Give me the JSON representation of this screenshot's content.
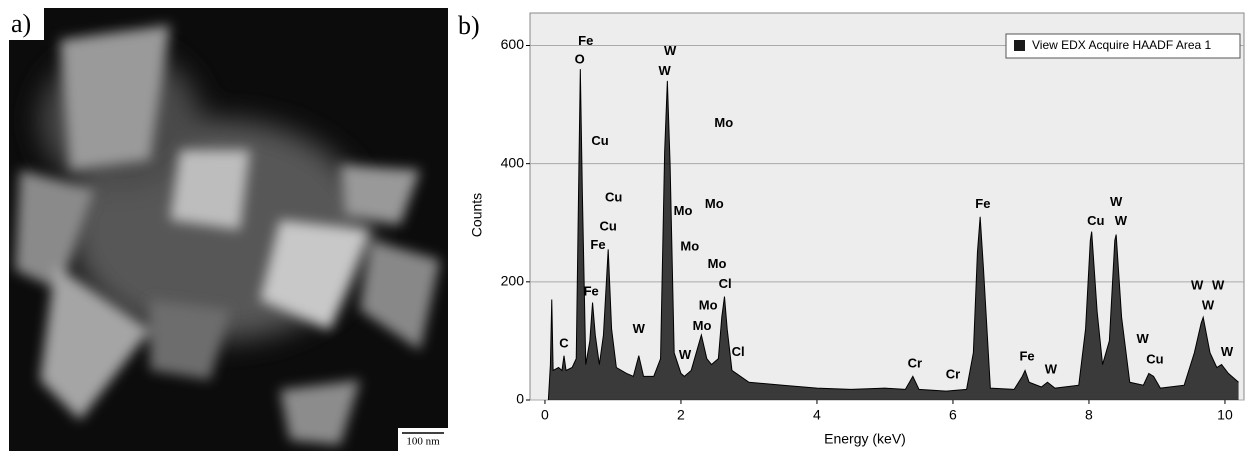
{
  "image_panel": {
    "label": "a)",
    "scale_bar": "100 nm"
  },
  "chart_data": {
    "type": "area",
    "panel_label": "b)",
    "xlabel": "Energy (keV)",
    "ylabel": "Counts",
    "x": [
      0.05,
      0.08,
      0.1,
      0.12,
      0.2,
      0.25,
      0.28,
      0.31,
      0.4,
      0.46,
      0.5,
      0.52,
      0.55,
      0.6,
      0.66,
      0.7,
      0.74,
      0.8,
      0.86,
      0.93,
      0.98,
      1.05,
      1.2,
      1.3,
      1.38,
      1.45,
      1.6,
      1.7,
      1.76,
      1.8,
      1.84,
      1.9,
      2.0,
      2.05,
      2.15,
      2.25,
      2.3,
      2.38,
      2.45,
      2.55,
      2.6,
      2.64,
      2.68,
      2.75,
      3.0,
      3.5,
      4.0,
      4.5,
      5.0,
      5.3,
      5.41,
      5.5,
      5.9,
      6.2,
      6.3,
      6.36,
      6.4,
      6.45,
      6.55,
      6.9,
      7.02,
      7.06,
      7.12,
      7.3,
      7.39,
      7.5,
      7.85,
      7.95,
      8.02,
      8.04,
      8.12,
      8.2,
      8.3,
      8.38,
      8.4,
      8.48,
      8.6,
      8.8,
      8.88,
      8.95,
      9.05,
      9.4,
      9.55,
      9.65,
      9.68,
      9.78,
      9.88,
      9.95,
      10.05,
      10.2
    ],
    "series": [
      {
        "name": "View EDX Acquire HAADF Area 1",
        "color": "#1a1a1a",
        "values": [
          0,
          60,
          170,
          50,
          55,
          50,
          75,
          50,
          55,
          70,
          400,
          560,
          350,
          60,
          100,
          165,
          110,
          60,
          110,
          255,
          120,
          55,
          45,
          40,
          75,
          40,
          40,
          70,
          420,
          540,
          400,
          80,
          45,
          40,
          50,
          90,
          110,
          70,
          60,
          70,
          140,
          175,
          120,
          50,
          30,
          25,
          20,
          18,
          20,
          18,
          40,
          18,
          15,
          18,
          80,
          250,
          310,
          220,
          20,
          18,
          40,
          50,
          30,
          22,
          30,
          20,
          25,
          120,
          270,
          285,
          150,
          60,
          100,
          270,
          280,
          140,
          30,
          25,
          45,
          40,
          20,
          25,
          80,
          130,
          140,
          80,
          55,
          60,
          45,
          30
        ]
      }
    ],
    "xlim": [
      -0.22,
      10.28
    ],
    "ylim": [
      0,
      655
    ],
    "xticks": [
      0,
      2,
      4,
      6,
      8,
      10
    ],
    "yticks": [
      0,
      200,
      400,
      600
    ],
    "grid": true,
    "legend": "upper right",
    "annotations": [
      {
        "text": "Fe",
        "x": 0.6,
        "y": 607
      },
      {
        "text": "O",
        "x": 0.51,
        "y": 575
      },
      {
        "text": "W",
        "x": 1.84,
        "y": 590
      },
      {
        "text": "W",
        "x": 1.76,
        "y": 556
      },
      {
        "text": "Mo",
        "x": 2.63,
        "y": 468
      },
      {
        "text": "Cu",
        "x": 0.81,
        "y": 437
      },
      {
        "text": "Cu",
        "x": 1.01,
        "y": 342
      },
      {
        "text": "Mo",
        "x": 2.03,
        "y": 319
      },
      {
        "text": "Mo",
        "x": 2.49,
        "y": 331
      },
      {
        "text": "Cu",
        "x": 0.93,
        "y": 293
      },
      {
        "text": "Fe",
        "x": 0.78,
        "y": 261
      },
      {
        "text": "Mo",
        "x": 2.13,
        "y": 259
      },
      {
        "text": "Mo",
        "x": 2.53,
        "y": 229
      },
      {
        "text": "Cl",
        "x": 2.65,
        "y": 195
      },
      {
        "text": "Fe",
        "x": 0.68,
        "y": 183
      },
      {
        "text": "Mo",
        "x": 2.4,
        "y": 159
      },
      {
        "text": "W",
        "x": 1.38,
        "y": 119
      },
      {
        "text": "Mo",
        "x": 2.31,
        "y": 124
      },
      {
        "text": "C",
        "x": 0.28,
        "y": 95
      },
      {
        "text": "Cl",
        "x": 2.84,
        "y": 80
      },
      {
        "text": "W",
        "x": 2.06,
        "y": 75
      },
      {
        "text": "Fe",
        "x": 6.44,
        "y": 331
      },
      {
        "text": "Cr",
        "x": 5.44,
        "y": 61
      },
      {
        "text": "Cr",
        "x": 6.0,
        "y": 42
      },
      {
        "text": "Fe",
        "x": 7.09,
        "y": 73
      },
      {
        "text": "W",
        "x": 7.44,
        "y": 51
      },
      {
        "text": "Cu",
        "x": 8.1,
        "y": 302
      },
      {
        "text": "W",
        "x": 8.4,
        "y": 334
      },
      {
        "text": "W",
        "x": 8.47,
        "y": 302
      },
      {
        "text": "W",
        "x": 8.79,
        "y": 102
      },
      {
        "text": "Cu",
        "x": 8.97,
        "y": 68
      },
      {
        "text": "W",
        "x": 9.59,
        "y": 193
      },
      {
        "text": "W",
        "x": 9.9,
        "y": 193
      },
      {
        "text": "W",
        "x": 9.75,
        "y": 159
      },
      {
        "text": "W",
        "x": 10.03,
        "y": 80
      }
    ]
  }
}
